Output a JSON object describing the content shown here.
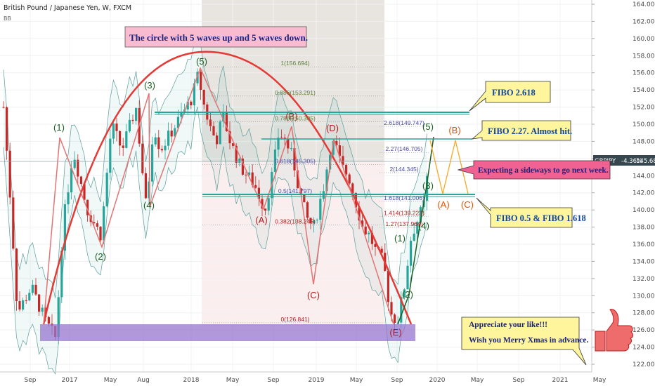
{
  "header": {
    "symbol_title": "British Pound / Japanese Yen, W, FXCM",
    "indicator": "BB"
  },
  "price_tag": {
    "symbol": "GBPJPY",
    "change": "-4.36%",
    "price": "145.681"
  },
  "chart_data": {
    "type": "line",
    "title": "British Pound / Japanese Yen, W, FXCM",
    "xlabel": "",
    "ylabel": "",
    "ylim": [
      121,
      165
    ],
    "grid": true,
    "y_ticks": [
      "122.000",
      "124.000",
      "126.000",
      "128.000",
      "130.000",
      "132.000",
      "134.000",
      "136.000",
      "138.000",
      "140.000",
      "142.000",
      "144.000",
      "146.000",
      "148.000",
      "150.000",
      "152.000",
      "154.000",
      "156.000",
      "158.000",
      "160.000",
      "162.000",
      "164.000"
    ],
    "x_ticks": [
      "Sep",
      "2017",
      "May",
      "Aug",
      "2018",
      "May",
      "Sep",
      "2019",
      "May",
      "Sep",
      "2020",
      "May",
      "Sep",
      "2021",
      "May"
    ],
    "series": [
      {
        "name": "GBPJPY weekly close (approx.)",
        "x": [
          0,
          10,
          20,
          40,
          60,
          75,
          85,
          100,
          120,
          140,
          155,
          170,
          190,
          205,
          215,
          225,
          240,
          255,
          270,
          280,
          285,
          295,
          305,
          315,
          325,
          340,
          360,
          375,
          385,
          395,
          405,
          415,
          425,
          435,
          445,
          460,
          470,
          478,
          485,
          495,
          505,
          515,
          525,
          535,
          545,
          555,
          565,
          575,
          585,
          595,
          605,
          610
        ],
        "values": [
          152,
          141,
          128,
          131,
          127,
          125,
          138,
          147,
          140,
          137,
          150,
          147,
          152,
          140,
          150,
          147,
          149,
          151,
          153,
          156,
          153,
          150,
          148,
          151,
          148,
          145,
          143,
          140,
          144,
          149,
          148,
          146,
          142,
          139,
          138,
          143,
          148,
          147,
          145,
          144,
          141,
          138,
          137,
          135,
          134,
          128,
          127,
          131,
          137,
          139,
          141,
          146
        ]
      }
    ],
    "fib_levels": [
      {
        "label": "1(156.694)",
        "value": 156.694
      },
      {
        "label": "0.886(153.291)",
        "value": 153.291
      },
      {
        "label": "0.786(150.305)",
        "value": 150.305
      },
      {
        "label": "0.618(145.305)",
        "value": 145.305
      },
      {
        "label": "0.5(141.797)",
        "value": 141.797
      },
      {
        "label": "0.382(138.245)",
        "value": 138.245
      },
      {
        "label": "0(126.841)",
        "value": 126.841
      },
      {
        "label": "2.618(149.747)",
        "value": 149.747
      },
      {
        "label": "2.27(146.705)",
        "value": 146.705
      },
      {
        "label": "2(144.345)",
        "value": 144.345
      },
      {
        "label": "1.618(141.006)",
        "value": 141.006
      },
      {
        "label": "1.414(139.223)",
        "value": 139.223
      },
      {
        "label": "1.27(137.964)",
        "value": 137.964
      }
    ],
    "wave_labels": [
      "(1)",
      "(2)",
      "(3)",
      "(4)",
      "(5)",
      "(A)",
      "(B)",
      "(C)",
      "(D)",
      "(E)"
    ]
  },
  "annotations": {
    "circle_note": "The circle with 5 waves up and 5 waves down.",
    "fibo_2618": "FIBO 2.618",
    "fibo_227": "FIBO 2.27. Almost  hit.",
    "sideways": "Expecting a sideways  to go next week.",
    "fibo_05": "FIBO 0.5 & FIBO 1.618",
    "appreciate": "Appreciate your like!!!",
    "xmas": "Wish you Merry Xmas in advance."
  },
  "colors": {
    "bull": "#26a69a",
    "bear": "#c62828",
    "arc": "#e53935",
    "wave_green": "#1b5e20",
    "wave_red": "#b71c1c",
    "fib_line": "#26a69a",
    "zone": "#9575cd",
    "note_pink": "#f8bbd0",
    "note_yellow": "#fff59d",
    "thumb": "#ef6c6c"
  },
  "icons": {
    "thumbs_up": "thumbs-up-icon"
  }
}
